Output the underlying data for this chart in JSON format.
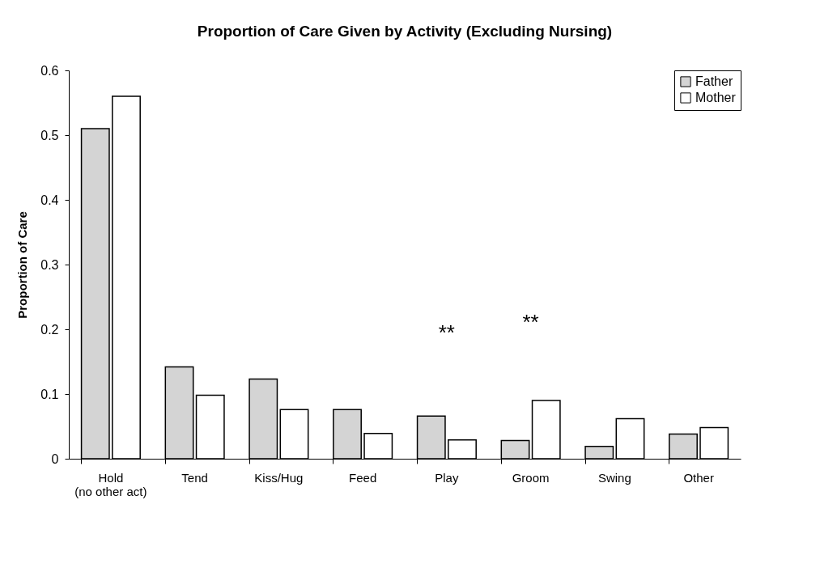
{
  "chart_data": {
    "type": "bar",
    "title": "Proportion of Care Given by Activity (Excluding Nursing)",
    "ylabel": "Proportion of Care",
    "categories": [
      "Hold\n(no other act)",
      "Tend",
      "Kiss/Hug",
      "Feed",
      "Play",
      "Groom",
      "Swing",
      "Other"
    ],
    "series": [
      {
        "name": "Father",
        "color": "#d4d4d4",
        "values": [
          0.51,
          0.142,
          0.123,
          0.076,
          0.066,
          0.028,
          0.019,
          0.038
        ]
      },
      {
        "name": "Mother",
        "color": "#ffffff",
        "values": [
          0.56,
          0.098,
          0.076,
          0.039,
          0.029,
          0.09,
          0.062,
          0.048
        ]
      }
    ],
    "ylim": [
      0,
      0.6
    ],
    "yticks": [
      0,
      0.1,
      0.2,
      0.3,
      0.4,
      0.5,
      0.6
    ],
    "annotations": [
      "**",
      "**"
    ],
    "grid": false,
    "legend": "top right"
  }
}
